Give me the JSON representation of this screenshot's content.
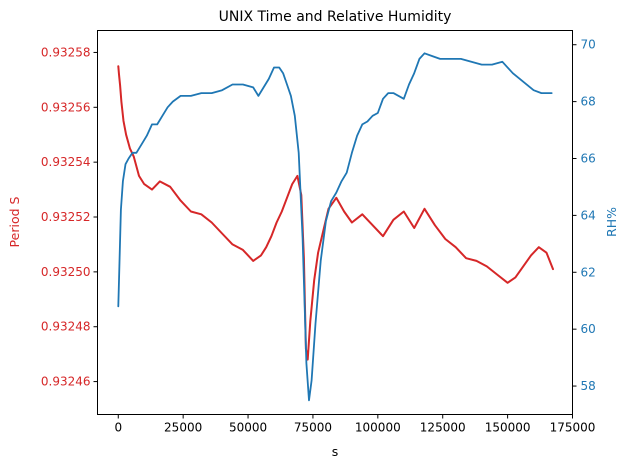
{
  "chart_data": {
    "type": "line",
    "title": "UNIX Time and Relative Humidity",
    "xlabel": "s",
    "xlim": [
      -8000,
      175000
    ],
    "x_ticks": [
      0,
      25000,
      50000,
      75000,
      100000,
      125000,
      150000,
      175000
    ],
    "x_tick_labels": [
      "0",
      "25000",
      "50000",
      "75000",
      "100000",
      "125000",
      "150000",
      "175000"
    ],
    "grid": false,
    "left_axis": {
      "label": "Period S",
      "color": "#d62728",
      "ylim": [
        0.932448,
        0.932588
      ],
      "ticks": [
        0.93246,
        0.93248,
        0.9325,
        0.93252,
        0.93254,
        0.93256,
        0.93258
      ],
      "tick_labels": [
        "0.93246",
        "0.93248",
        "0.93250",
        "0.93252",
        "0.93254",
        "0.93256",
        "0.93258"
      ]
    },
    "right_axis": {
      "label": "RH%",
      "color": "#1f77b4",
      "ylim": [
        57.0,
        70.5
      ],
      "ticks": [
        58,
        60,
        62,
        64,
        66,
        68,
        70
      ],
      "tick_labels": [
        "58",
        "60",
        "62",
        "64",
        "66",
        "68",
        "70"
      ]
    },
    "series": [
      {
        "axis": "left",
        "color": "#d62728",
        "x": [
          0,
          300,
          700,
          1200,
          2000,
          3000,
          4500,
          6000,
          8000,
          10000,
          13000,
          16000,
          20000,
          24000,
          28000,
          32000,
          36000,
          40000,
          44000,
          48000,
          52000,
          55000,
          57000,
          59000,
          61000,
          63000,
          65000,
          67000,
          69000,
          70500,
          71500,
          72300,
          73000,
          74000,
          75500,
          77000,
          79000,
          81000,
          84000,
          87000,
          90000,
          94000,
          98000,
          102000,
          106000,
          110000,
          114000,
          118000,
          122000,
          126000,
          130000,
          134000,
          138000,
          142000,
          146000,
          150000,
          153000,
          156000,
          159000,
          162000,
          165000,
          167500
        ],
        "y": [
          0.932575,
          0.932572,
          0.932568,
          0.932562,
          0.932555,
          0.93255,
          0.932545,
          0.932542,
          0.932535,
          0.932532,
          0.93253,
          0.932533,
          0.932531,
          0.932526,
          0.932522,
          0.932521,
          0.932518,
          0.932514,
          0.93251,
          0.932508,
          0.932504,
          0.932506,
          0.932509,
          0.932513,
          0.932518,
          0.932522,
          0.932527,
          0.932532,
          0.932535,
          0.932528,
          0.932505,
          0.932472,
          0.932468,
          0.932482,
          0.932497,
          0.932507,
          0.932515,
          0.932523,
          0.932527,
          0.932522,
          0.932518,
          0.932521,
          0.932517,
          0.932513,
          0.932519,
          0.932522,
          0.932516,
          0.932523,
          0.932517,
          0.932512,
          0.932509,
          0.932505,
          0.932504,
          0.932502,
          0.932499,
          0.932496,
          0.932498,
          0.932502,
          0.932506,
          0.932509,
          0.932507,
          0.932501
        ]
      },
      {
        "axis": "right",
        "color": "#1f77b4",
        "x": [
          0,
          500,
          1000,
          1800,
          2800,
          4000,
          5500,
          7000,
          9000,
          11000,
          13000,
          15000,
          17000,
          19000,
          21000,
          24000,
          28000,
          32000,
          36000,
          40000,
          44000,
          48000,
          52000,
          54000,
          56000,
          58000,
          60000,
          62000,
          63500,
          65000,
          66500,
          68000,
          69500,
          71000,
          72500,
          73500,
          74500,
          76000,
          78000,
          80000,
          82000,
          84000,
          86000,
          88000,
          90000,
          92000,
          94000,
          96000,
          98000,
          100000,
          102000,
          104000,
          106000,
          108000,
          110000,
          112000,
          114000,
          116000,
          118000,
          121000,
          124000,
          128000,
          132000,
          136000,
          140000,
          144000,
          148000,
          152000,
          156000,
          160000,
          163000,
          165000,
          167000
        ],
        "y": [
          60.8,
          62.5,
          64.2,
          65.2,
          65.8,
          66.0,
          66.2,
          66.2,
          66.5,
          66.8,
          67.2,
          67.2,
          67.5,
          67.8,
          68.0,
          68.2,
          68.2,
          68.3,
          68.3,
          68.4,
          68.6,
          68.6,
          68.5,
          68.2,
          68.5,
          68.8,
          69.2,
          69.2,
          69.0,
          68.6,
          68.2,
          67.5,
          66.2,
          63.2,
          58.8,
          57.5,
          58.2,
          60.2,
          62.4,
          63.8,
          64.5,
          64.8,
          65.2,
          65.5,
          66.2,
          66.8,
          67.2,
          67.3,
          67.5,
          67.6,
          68.1,
          68.3,
          68.3,
          68.2,
          68.1,
          68.6,
          69.0,
          69.5,
          69.7,
          69.6,
          69.5,
          69.5,
          69.5,
          69.4,
          69.3,
          69.3,
          69.4,
          69.0,
          68.7,
          68.4,
          68.3,
          68.3,
          68.3
        ]
      }
    ]
  }
}
